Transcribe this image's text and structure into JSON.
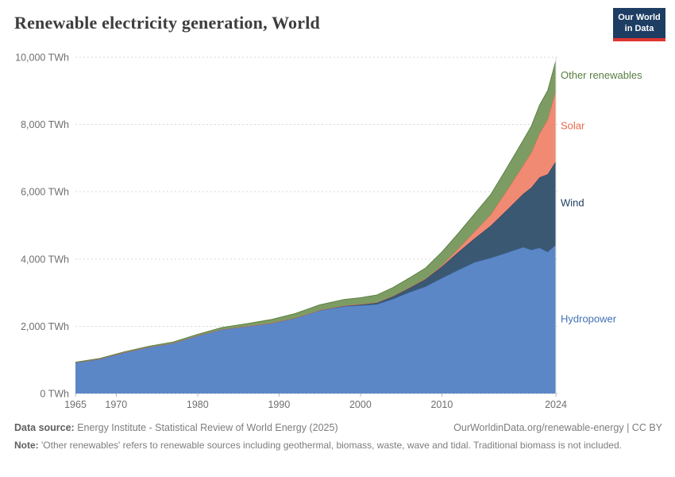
{
  "header": {
    "title": "Renewable electricity generation, World",
    "logo_line1": "Our World",
    "logo_line2": "in Data"
  },
  "colors": {
    "logo_bg": "#1d3d63",
    "logo_accent": "#e0352f",
    "grid": "#d7d7d7",
    "zero_line": "#bdbdbd",
    "tick_text": "#6f6f6f",
    "plot_border": "#dddddd"
  },
  "chart_data": {
    "type": "area",
    "stacked": true,
    "title": "Renewable electricity generation, World",
    "xlabel": "",
    "ylabel": "",
    "unit": "TWh",
    "xlim": [
      1965,
      2024
    ],
    "ylim": [
      0,
      10000
    ],
    "grid": true,
    "legend_position": "right-inline-labels",
    "years": [
      1965,
      1968,
      1971,
      1974,
      1977,
      1980,
      1983,
      1986,
      1989,
      1992,
      1995,
      1998,
      2000,
      2002,
      2004,
      2006,
      2008,
      2010,
      2012,
      2014,
      2016,
      2018,
      2020,
      2021,
      2022,
      2023,
      2024
    ],
    "series": [
      {
        "name": "Hydropower",
        "color": "#5b87c7",
        "label_color": "#4271b5",
        "values": [
          920,
          1030,
          1220,
          1380,
          1500,
          1720,
          1910,
          2000,
          2090,
          2240,
          2470,
          2590,
          2620,
          2650,
          2810,
          3010,
          3180,
          3430,
          3670,
          3900,
          4030,
          4190,
          4350,
          4270,
          4330,
          4210,
          4420
        ]
      },
      {
        "name": "Wind",
        "color": "#3b5873",
        "label_color": "#1d3d63",
        "values": [
          0,
          0,
          0,
          0,
          0,
          0,
          0,
          1,
          3,
          5,
          8,
          21,
          31,
          52,
          85,
          133,
          221,
          342,
          530,
          710,
          960,
          1270,
          1590,
          1860,
          2100,
          2310,
          2490
        ]
      },
      {
        "name": "Solar",
        "color": "#f08a73",
        "label_color": "#e8684a",
        "values": [
          0,
          0,
          0,
          0,
          0,
          0,
          0,
          0,
          0,
          0,
          0,
          1,
          1,
          2,
          3,
          6,
          13,
          34,
          100,
          200,
          330,
          580,
          850,
          1040,
          1300,
          1630,
          2100
        ]
      },
      {
        "name": "Other renewables",
        "color": "#7d9c64",
        "label_color": "#577d3f",
        "values": [
          12,
          15,
          19,
          24,
          31,
          38,
          55,
          75,
          105,
          135,
          160,
          185,
          200,
          225,
          255,
          285,
          320,
          400,
          460,
          530,
          600,
          680,
          750,
          790,
          850,
          860,
          890
        ]
      }
    ],
    "y_ticks": [
      {
        "value": 0,
        "label": "0 TWh"
      },
      {
        "value": 2000,
        "label": "2,000 TWh"
      },
      {
        "value": 4000,
        "label": "4,000 TWh"
      },
      {
        "value": 6000,
        "label": "6,000 TWh"
      },
      {
        "value": 8000,
        "label": "8,000 TWh"
      },
      {
        "value": 10000,
        "label": "10,000 TWh"
      }
    ],
    "x_ticks": [
      {
        "value": 1965,
        "label": "1965"
      },
      {
        "value": 1970,
        "label": "1970"
      },
      {
        "value": 1980,
        "label": "1980"
      },
      {
        "value": 1990,
        "label": "1990"
      },
      {
        "value": 2000,
        "label": "2000"
      },
      {
        "value": 2010,
        "label": "2010"
      },
      {
        "value": 2024,
        "label": "2024"
      }
    ]
  },
  "footer": {
    "source_label": "Data source:",
    "source_text": "Energy Institute - Statistical Review of World Energy (2025)",
    "link": "OurWorldinData.org/renewable-energy | CC BY",
    "note_label": "Note:",
    "note_text": "'Other renewables' refers to renewable sources including geothermal, biomass, waste, wave and tidal. Traditional biomass is not included."
  }
}
